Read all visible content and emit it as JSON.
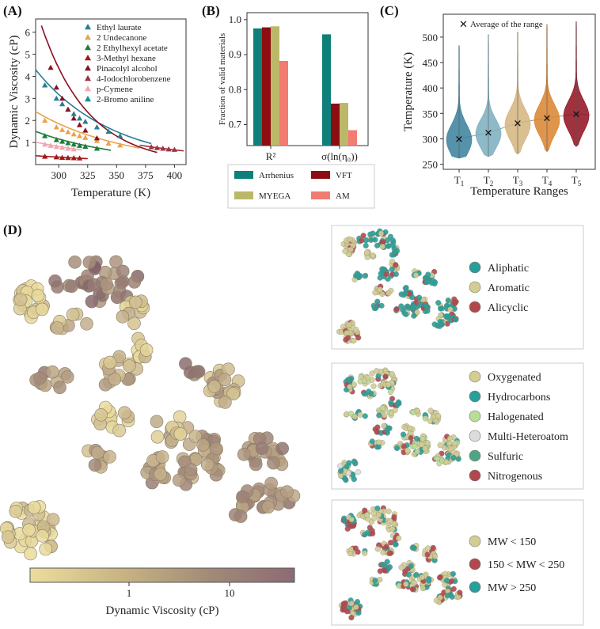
{
  "figure": {
    "panel_labels": [
      "(A)",
      "(B)",
      "(C)",
      "(D)"
    ]
  },
  "chart_data": [
    {
      "id": "A",
      "type": "line",
      "ylabel": "Dynamic Viscosity (cP)",
      "xlabel": "Temperature (K)",
      "xlim": [
        280,
        410
      ],
      "ylim": [
        0,
        6.6
      ],
      "xticks": [
        300,
        325,
        350,
        375,
        400
      ],
      "yticks": [
        1,
        2,
        3,
        4,
        5,
        6
      ],
      "grid": false,
      "legend_position": "top-right",
      "series": [
        {
          "name": "Ethyl laurate",
          "color": "#2a7c94",
          "marker": "triangle",
          "x": [
            288,
            298,
            303,
            308,
            313,
            318,
            323,
            333,
            343,
            353
          ],
          "y": [
            3.6,
            3.0,
            2.75,
            2.5,
            2.3,
            2.1,
            1.95,
            1.7,
            1.5,
            1.3
          ],
          "curve_x": [
            280,
            380
          ],
          "curve_y": [
            4.3,
            0.95
          ]
        },
        {
          "name": "2 Undecanone",
          "color": "#e8a44a",
          "marker": "triangle",
          "x": [
            288,
            298,
            303,
            308,
            313,
            318,
            323,
            333,
            343,
            353
          ],
          "y": [
            2.0,
            1.7,
            1.58,
            1.48,
            1.38,
            1.3,
            1.22,
            1.08,
            0.96,
            0.88
          ],
          "curve_x": [
            280,
            370
          ],
          "curve_y": [
            2.4,
            0.75
          ]
        },
        {
          "name": "2 Ethylhexyl acetate",
          "color": "#1e7b3a",
          "marker": "triangle",
          "x": [
            288,
            298,
            303,
            308,
            313,
            318,
            323,
            333
          ],
          "y": [
            1.3,
            1.12,
            1.05,
            0.98,
            0.92,
            0.86,
            0.82,
            0.73
          ],
          "curve_x": [
            280,
            345
          ],
          "curve_y": [
            1.5,
            0.65
          ]
        },
        {
          "name": "3-Methyl hexane",
          "color": "#a01818",
          "marker": "triangle",
          "x": [
            288,
            298,
            303,
            308,
            313,
            318
          ],
          "y": [
            0.37,
            0.34,
            0.32,
            0.31,
            0.3,
            0.29
          ],
          "curve_x": [
            280,
            325
          ],
          "curve_y": [
            0.4,
            0.27
          ]
        },
        {
          "name": "Pinacolyl alcohol",
          "color": "#8b1020",
          "marker": "triangle",
          "x": [
            293,
            298,
            303,
            308,
            313,
            318,
            323,
            333
          ],
          "y": [
            4.4,
            3.5,
            3.0,
            2.5,
            2.1,
            1.8,
            1.55,
            1.2
          ],
          "curve_x": [
            285,
            385
          ],
          "curve_y": [
            6.3,
            0.55
          ]
        },
        {
          "name": "4-Iodochlorobenzene",
          "color": "#9e3440",
          "marker": "triangle",
          "x": [
            380,
            385,
            390,
            395,
            400
          ],
          "y": [
            0.8,
            0.76,
            0.73,
            0.7,
            0.68
          ],
          "curve_x": [
            370,
            408
          ],
          "curve_y": [
            0.88,
            0.62
          ]
        },
        {
          "name": "p-Cymene",
          "color": "#f0a8b0",
          "marker": "triangle",
          "x": [
            288,
            293,
            298,
            303,
            308,
            313
          ],
          "y": [
            0.92,
            0.86,
            0.81,
            0.77,
            0.73,
            0.7
          ],
          "curve_x": [
            280,
            320
          ],
          "curve_y": [
            1.02,
            0.66
          ]
        },
        {
          "name": "2-Bromo aniline",
          "color": "#1a8c96",
          "marker": "triangle",
          "x": [],
          "y": [],
          "curve_x": [],
          "curve_y": []
        }
      ]
    },
    {
      "id": "B",
      "type": "bar",
      "ylabel": "Fraction of valid materials",
      "categories": [
        "R²",
        "σ(ln(η₀))"
      ],
      "ylim": [
        0.64,
        1.02
      ],
      "yticks": [
        0.7,
        0.8,
        0.9,
        1.0
      ],
      "ytick_labels": [
        "0.7",
        "0.8",
        "0.9",
        "1.0"
      ],
      "legend_position": "below",
      "series": [
        {
          "name": "Arrhenius",
          "color": "#0f7f7a",
          "values": [
            0.975,
            0.958
          ]
        },
        {
          "name": "VFT",
          "color": "#8c0e12",
          "values": [
            0.978,
            0.76
          ]
        },
        {
          "name": "MYEGA",
          "color": "#bcb86a",
          "values": [
            0.981,
            0.762
          ]
        },
        {
          "name": "AM",
          "color": "#f27b72",
          "values": [
            0.882,
            0.684
          ]
        }
      ]
    },
    {
      "id": "C",
      "type": "violin",
      "ylabel": "Temperature (K)",
      "xlabel": "Temperature Ranges",
      "ylim": [
        240,
        545
      ],
      "yticks": [
        250,
        300,
        350,
        400,
        450,
        500
      ],
      "categories": [
        "T1",
        "T2",
        "T3",
        "T4",
        "T5"
      ],
      "category_labels": [
        {
          "base": "T",
          "sub": "1"
        },
        {
          "base": "T",
          "sub": "2"
        },
        {
          "base": "T",
          "sub": "3"
        },
        {
          "base": "T",
          "sub": "4"
        },
        {
          "base": "T",
          "sub": "5"
        }
      ],
      "legend_label": "Average of the range",
      "legend_position": "top-left",
      "series": [
        {
          "name": "T1",
          "color": "#3a7f9c",
          "mean": 300,
          "median": 298,
          "min": 262,
          "max": 483,
          "spread": 30
        },
        {
          "name": "T2",
          "color": "#7aaebd",
          "mean": 312,
          "median": 310,
          "min": 265,
          "max": 505,
          "spread": 28
        },
        {
          "name": "T3",
          "color": "#d3b47e",
          "mean": 331,
          "median": 328,
          "min": 270,
          "max": 510,
          "spread": 30
        },
        {
          "name": "T4",
          "color": "#d9822b",
          "mean": 341,
          "median": 337,
          "min": 275,
          "max": 525,
          "spread": 30
        },
        {
          "name": "T5",
          "color": "#8e0e1c",
          "mean": 349,
          "median": 345,
          "min": 285,
          "max": 530,
          "spread": 30
        }
      ]
    },
    {
      "id": "D",
      "type": "scatter",
      "colorbar_label": "Dynamic Viscosity (cP)",
      "colorbar_ticks": [
        "1",
        "10"
      ],
      "colorbar_colors": [
        "#ecdd9c",
        "#c8b382",
        "#a08878",
        "#8c6b73"
      ],
      "subplots": [
        {
          "name": "structure",
          "categories": [
            {
              "label": "Aliphatic",
              "color": "#2a9e98"
            },
            {
              "label": "Aromatic",
              "color": "#d3cd92"
            },
            {
              "label": "Alicyclic",
              "color": "#b0484d"
            }
          ]
        },
        {
          "name": "heteroatom",
          "categories": [
            {
              "label": "Oxygenated",
              "color": "#d3cd92"
            },
            {
              "label": "Hydrocarbons",
              "color": "#2a9e98"
            },
            {
              "label": "Halogenated",
              "color": "#b9dc97"
            },
            {
              "label": "Multi-Heteroatom",
              "color": "#dcdcdc"
            },
            {
              "label": "Sulfuric",
              "color": "#4ea584"
            },
            {
              "label": "Nitrogenous",
              "color": "#b0484d"
            }
          ]
        },
        {
          "name": "molecular-weight",
          "categories": [
            {
              "label": "MW < 150",
              "color": "#d3cd92"
            },
            {
              "label": "150 < MW < 250",
              "color": "#b0484d"
            },
            {
              "label": "MW > 250",
              "color": "#2a9e98"
            }
          ]
        }
      ]
    }
  ]
}
